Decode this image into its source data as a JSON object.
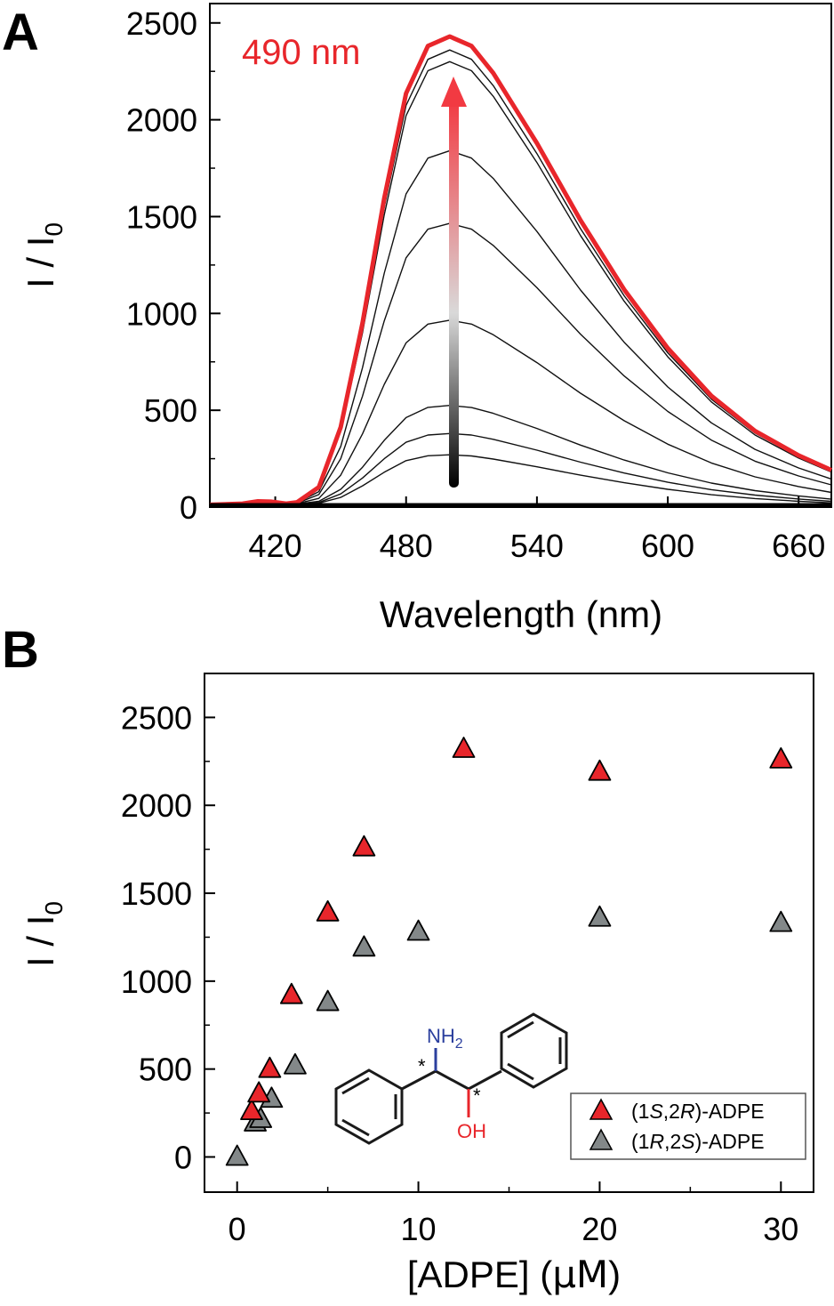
{
  "chart_data": [
    {
      "panel": "A",
      "type": "line",
      "xlabel": "Wavelength (nm)",
      "ylabel_main": "I / I",
      "ylabel_sub": "0",
      "xlim": [
        390,
        675
      ],
      "ylim": [
        0,
        2600
      ],
      "xticks": [
        420,
        480,
        540,
        600,
        660
      ],
      "yticks": [
        0,
        500,
        1000,
        1500,
        2000,
        2500
      ],
      "annotation": "490 nm",
      "highlight_color": "#e8262b",
      "series": [
        {
          "peak": 270,
          "x": [
            390,
            405,
            412,
            418,
            425,
            430,
            440,
            450,
            460,
            470,
            480,
            490,
            500,
            510,
            520,
            540,
            560,
            580,
            600,
            620,
            640,
            660,
            675
          ],
          "values": [
            12,
            18,
            30,
            28,
            18,
            14,
            20,
            50,
            110,
            180,
            240,
            265,
            270,
            264,
            248,
            208,
            165,
            126,
            92,
            64,
            44,
            30,
            22
          ]
        },
        {
          "peak": 380,
          "x": [
            390,
            405,
            412,
            418,
            425,
            430,
            440,
            450,
            460,
            470,
            480,
            490,
            500,
            510,
            520,
            540,
            560,
            580,
            600,
            620,
            640,
            660,
            675
          ],
          "values": [
            12,
            18,
            30,
            28,
            18,
            15,
            24,
            68,
            150,
            250,
            335,
            372,
            380,
            372,
            350,
            294,
            232,
            176,
            128,
            90,
            62,
            42,
            30
          ]
        },
        {
          "peak": 525,
          "x": [
            390,
            405,
            412,
            418,
            425,
            430,
            440,
            450,
            460,
            470,
            480,
            490,
            500,
            510,
            520,
            540,
            560,
            580,
            600,
            620,
            640,
            660,
            675
          ],
          "values": [
            12,
            18,
            30,
            28,
            18,
            16,
            30,
            92,
            206,
            345,
            462,
            515,
            525,
            514,
            484,
            406,
            320,
            243,
            177,
            124,
            85,
            58,
            41
          ]
        },
        {
          "peak": 965,
          "x": [
            390,
            405,
            412,
            418,
            425,
            430,
            440,
            450,
            460,
            470,
            480,
            490,
            500,
            510,
            520,
            540,
            560,
            580,
            600,
            620,
            640,
            660,
            675
          ],
          "values": [
            12,
            18,
            30,
            28,
            18,
            18,
            45,
            165,
            378,
            634,
            848,
            945,
            965,
            945,
            890,
            746,
            588,
            446,
            325,
            228,
            156,
            106,
            76
          ]
        },
        {
          "peak": 1465,
          "x": [
            390,
            405,
            412,
            418,
            425,
            430,
            440,
            450,
            460,
            470,
            480,
            490,
            500,
            510,
            520,
            540,
            560,
            580,
            600,
            620,
            640,
            660,
            675
          ],
          "values": [
            12,
            18,
            30,
            28,
            18,
            20,
            65,
            250,
            573,
            962,
            1287,
            1435,
            1465,
            1435,
            1351,
            1133,
            893,
            677,
            494,
            346,
            237,
            161,
            115
          ]
        },
        {
          "peak": 1840,
          "x": [
            390,
            405,
            412,
            418,
            425,
            430,
            440,
            450,
            460,
            470,
            480,
            490,
            500,
            510,
            520,
            540,
            560,
            580,
            600,
            620,
            640,
            660,
            675
          ],
          "values": [
            12,
            18,
            30,
            28,
            18,
            22,
            80,
            313,
            720,
            1208,
            1617,
            1802,
            1840,
            1802,
            1697,
            1423,
            1121,
            851,
            620,
            435,
            298,
            202,
            145
          ]
        },
        {
          "peak": 2300,
          "x": [
            390,
            405,
            412,
            418,
            425,
            430,
            440,
            450,
            460,
            470,
            480,
            490,
            500,
            510,
            520,
            540,
            560,
            580,
            600,
            620,
            640,
            660,
            675
          ],
          "values": [
            12,
            18,
            30,
            28,
            18,
            24,
            98,
            391,
            900,
            1510,
            2021,
            2253,
            2300,
            2253,
            2121,
            1779,
            1402,
            1063,
            776,
            543,
            372,
            253,
            181
          ]
        },
        {
          "peak": 2360,
          "x": [
            390,
            405,
            412,
            418,
            425,
            430,
            440,
            450,
            460,
            470,
            480,
            490,
            500,
            510,
            520,
            540,
            560,
            580,
            600,
            620,
            640,
            660,
            675
          ],
          "values": [
            12,
            18,
            30,
            28,
            18,
            24,
            100,
            401,
            923,
            1550,
            2074,
            2312,
            2360,
            2312,
            2176,
            1825,
            1438,
            1091,
            796,
            557,
            382,
            260,
            186
          ]
        },
        {
          "peak": 2430,
          "x": [
            390,
            405,
            412,
            418,
            425,
            430,
            440,
            450,
            460,
            470,
            480,
            490,
            500,
            510,
            520,
            540,
            560,
            580,
            600,
            620,
            640,
            660,
            675
          ],
          "values": [
            12,
            18,
            30,
            28,
            18,
            25,
            103,
            413,
            950,
            1596,
            2136,
            2381,
            2430,
            2381,
            2241,
            1879,
            1481,
            1123,
            820,
            574,
            393,
            267,
            191
          ],
          "highlight": true
        }
      ]
    },
    {
      "panel": "B",
      "type": "scatter",
      "xlabel_pre": "[ADPE] (",
      "xlabel_unit": "μM",
      "xlabel_post": ")",
      "ylabel_main": "I / I",
      "ylabel_sub": "0",
      "xlim": [
        -1.8,
        31.8
      ],
      "ylim": [
        -200,
        2750
      ],
      "xticks": [
        0,
        10,
        20,
        30
      ],
      "yticks": [
        0,
        500,
        1000,
        1500,
        2000,
        2500
      ],
      "series": [
        {
          "name_parts": [
            "(1",
            "S",
            ",2",
            "R",
            ")-ADPE"
          ],
          "color": "#e8262b",
          "x": [
            0.8,
            1.2,
            1.8,
            3.0,
            5.0,
            7.0,
            12.5,
            20.0,
            30.0
          ],
          "values": [
            270,
            370,
            510,
            930,
            1400,
            1770,
            2330,
            2200,
            2270
          ]
        },
        {
          "name_parts": [
            "(1",
            "R",
            ",2",
            "S",
            ")-ADPE"
          ],
          "color": "#838889",
          "x": [
            0.0,
            1.0,
            1.3,
            1.9,
            3.2,
            5.0,
            7.0,
            10.0,
            20.0,
            30.0
          ],
          "values": [
            10,
            205,
            225,
            340,
            530,
            890,
            1200,
            1290,
            1370,
            1340
          ]
        }
      ],
      "inset_structure": {
        "amine": "NH",
        "amine_sub": "2",
        "hydroxyl": "OH",
        "stereo_mark": "*",
        "amine_color": "#2b3f9e",
        "hydroxyl_color": "#e8262b"
      }
    }
  ]
}
